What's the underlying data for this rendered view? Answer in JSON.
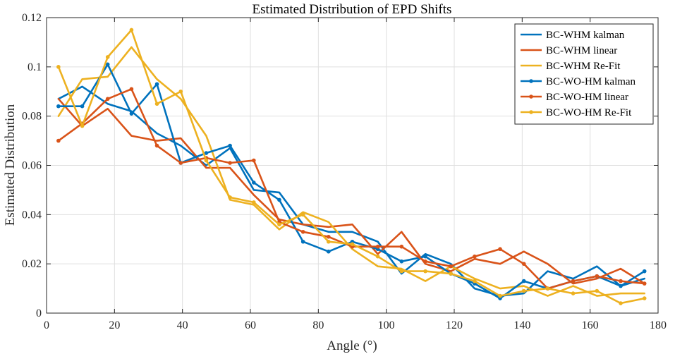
{
  "chart_data": {
    "type": "line",
    "title": "Estimated Distribution of EPD Shifts",
    "xlabel": "Angle (°)",
    "ylabel": "Estimated Distribution",
    "xlim": [
      0,
      180
    ],
    "ylim": [
      0,
      0.12
    ],
    "xticks": [
      0,
      20,
      40,
      60,
      80,
      100,
      120,
      140,
      160,
      180
    ],
    "xtick_labels": [
      "0",
      "20",
      "40",
      "60",
      "80",
      "100",
      "120",
      "140",
      "160",
      "180"
    ],
    "yticks": [
      0,
      0.02,
      0.04,
      0.06,
      0.08,
      0.1,
      0.12
    ],
    "ytick_labels": [
      "0",
      "0.02",
      "0.04",
      "0.06",
      "0.08",
      "0.1",
      "0.12"
    ],
    "grid": true,
    "legend_position": "top-right",
    "x": [
      3.5,
      10.5,
      18,
      25,
      32.5,
      39.5,
      47,
      54,
      61,
      68.5,
      75.5,
      83,
      90,
      97.5,
      104.5,
      111.5,
      119,
      126,
      133.5,
      140.5,
      147.5,
      155,
      162,
      169,
      176
    ],
    "series": [
      {
        "name": "BC-WHM kalman",
        "color": "#0072BD",
        "marker": false,
        "values": [
          0.087,
          0.092,
          0.085,
          0.082,
          0.073,
          0.068,
          0.06,
          0.067,
          0.05,
          0.049,
          0.036,
          0.033,
          0.033,
          0.029,
          0.016,
          0.024,
          0.02,
          0.01,
          0.007,
          0.008,
          0.017,
          0.014,
          0.019,
          0.011,
          0.014
        ]
      },
      {
        "name": "BC-WHM linear",
        "color": "#D95319",
        "marker": false,
        "values": [
          0.087,
          0.076,
          0.083,
          0.072,
          0.07,
          0.071,
          0.059,
          0.059,
          0.048,
          0.038,
          0.036,
          0.035,
          0.036,
          0.024,
          0.033,
          0.02,
          0.017,
          0.022,
          0.02,
          0.025,
          0.02,
          0.012,
          0.014,
          0.018,
          0.012
        ]
      },
      {
        "name": "BC-WHM Re-Fit",
        "color": "#EDB120",
        "marker": false,
        "values": [
          0.08,
          0.095,
          0.096,
          0.108,
          0.095,
          0.087,
          0.072,
          0.046,
          0.044,
          0.034,
          0.041,
          0.037,
          0.026,
          0.019,
          0.018,
          0.013,
          0.019,
          0.014,
          0.01,
          0.011,
          0.007,
          0.011,
          0.007,
          0.008,
          0.008
        ]
      },
      {
        "name": "BC-WO-HM kalman",
        "color": "#0072BD",
        "marker": true,
        "values": [
          0.084,
          0.084,
          0.101,
          0.081,
          0.093,
          0.061,
          0.065,
          0.068,
          0.053,
          0.046,
          0.029,
          0.025,
          0.029,
          0.026,
          0.021,
          0.023,
          0.016,
          0.012,
          0.006,
          0.013,
          0.01,
          0.013,
          0.015,
          0.011,
          0.017
        ]
      },
      {
        "name": "BC-WO-HM linear",
        "color": "#D95319",
        "marker": true,
        "values": [
          0.07,
          0.077,
          0.087,
          0.091,
          0.068,
          0.061,
          0.063,
          0.061,
          0.062,
          0.037,
          0.033,
          0.031,
          0.027,
          0.027,
          0.027,
          0.021,
          0.019,
          0.023,
          0.026,
          0.02,
          0.01,
          0.013,
          0.015,
          0.013,
          0.012
        ]
      },
      {
        "name": "BC-WO-HM Re-Fit",
        "color": "#EDB120",
        "marker": true,
        "values": [
          0.1,
          0.076,
          0.104,
          0.115,
          0.085,
          0.09,
          0.062,
          0.047,
          0.045,
          0.036,
          0.04,
          0.029,
          0.028,
          0.023,
          0.017,
          0.017,
          0.016,
          0.013,
          0.007,
          0.009,
          0.01,
          0.008,
          0.009,
          0.004,
          0.006
        ]
      }
    ]
  }
}
